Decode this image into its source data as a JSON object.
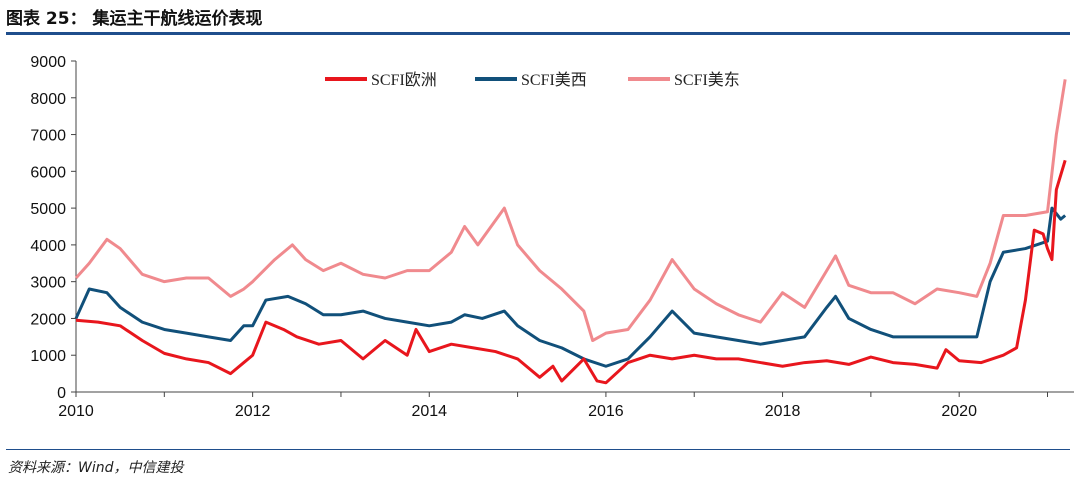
{
  "header": {
    "title": "图表 25：   集运主干航线运价表现"
  },
  "footer": {
    "source": "资料来源：Wind，中信建投"
  },
  "chart_data": {
    "type": "line",
    "title": "集运主干航线运价表现",
    "xlabel": "",
    "ylabel": "",
    "xlim": [
      2010,
      2021.3
    ],
    "ylim": [
      0,
      9000
    ],
    "xticks": [
      2010,
      2012,
      2014,
      2016,
      2018,
      2020
    ],
    "yticks": [
      0,
      1000,
      2000,
      3000,
      4000,
      5000,
      6000,
      7000,
      8000,
      9000
    ],
    "legend_position": "top-center",
    "series": [
      {
        "name": "SCFI欧洲",
        "color": "#e8161d",
        "points": [
          [
            2010,
            1950
          ],
          [
            2010.25,
            1900
          ],
          [
            2010.5,
            1800
          ],
          [
            2010.75,
            1400
          ],
          [
            2011,
            1050
          ],
          [
            2011.25,
            900
          ],
          [
            2011.5,
            800
          ],
          [
            2011.75,
            500
          ],
          [
            2011.9,
            800
          ],
          [
            2012,
            1000
          ],
          [
            2012.15,
            1900
          ],
          [
            2012.35,
            1700
          ],
          [
            2012.5,
            1500
          ],
          [
            2012.75,
            1300
          ],
          [
            2013,
            1400
          ],
          [
            2013.25,
            900
          ],
          [
            2013.5,
            1400
          ],
          [
            2013.75,
            1000
          ],
          [
            2013.85,
            1700
          ],
          [
            2014,
            1100
          ],
          [
            2014.25,
            1300
          ],
          [
            2014.5,
            1200
          ],
          [
            2014.75,
            1100
          ],
          [
            2015,
            900
          ],
          [
            2015.25,
            400
          ],
          [
            2015.4,
            700
          ],
          [
            2015.5,
            300
          ],
          [
            2015.75,
            900
          ],
          [
            2015.9,
            300
          ],
          [
            2016,
            250
          ],
          [
            2016.25,
            800
          ],
          [
            2016.5,
            1000
          ],
          [
            2016.75,
            900
          ],
          [
            2017,
            1000
          ],
          [
            2017.25,
            900
          ],
          [
            2017.5,
            900
          ],
          [
            2017.75,
            800
          ],
          [
            2018,
            700
          ],
          [
            2018.25,
            800
          ],
          [
            2018.5,
            850
          ],
          [
            2018.75,
            750
          ],
          [
            2019,
            950
          ],
          [
            2019.25,
            800
          ],
          [
            2019.5,
            750
          ],
          [
            2019.75,
            650
          ],
          [
            2019.85,
            1150
          ],
          [
            2020,
            850
          ],
          [
            2020.25,
            800
          ],
          [
            2020.5,
            1000
          ],
          [
            2020.65,
            1200
          ],
          [
            2020.75,
            2500
          ],
          [
            2020.85,
            4400
          ],
          [
            2020.95,
            4300
          ],
          [
            2021,
            3900
          ],
          [
            2021.05,
            3600
          ],
          [
            2021.1,
            5500
          ],
          [
            2021.2,
            6300
          ]
        ]
      },
      {
        "name": "SCFI美西",
        "color": "#11507a",
        "points": [
          [
            2010,
            2000
          ],
          [
            2010.15,
            2800
          ],
          [
            2010.35,
            2700
          ],
          [
            2010.5,
            2300
          ],
          [
            2010.75,
            1900
          ],
          [
            2011,
            1700
          ],
          [
            2011.25,
            1600
          ],
          [
            2011.5,
            1500
          ],
          [
            2011.75,
            1400
          ],
          [
            2011.9,
            1800
          ],
          [
            2012,
            1800
          ],
          [
            2012.15,
            2500
          ],
          [
            2012.4,
            2600
          ],
          [
            2012.6,
            2400
          ],
          [
            2012.8,
            2100
          ],
          [
            2013,
            2100
          ],
          [
            2013.25,
            2200
          ],
          [
            2013.5,
            2000
          ],
          [
            2013.75,
            1900
          ],
          [
            2014,
            1800
          ],
          [
            2014.25,
            1900
          ],
          [
            2014.4,
            2100
          ],
          [
            2014.6,
            2000
          ],
          [
            2014.85,
            2200
          ],
          [
            2015,
            1800
          ],
          [
            2015.25,
            1400
          ],
          [
            2015.5,
            1200
          ],
          [
            2015.75,
            900
          ],
          [
            2016,
            700
          ],
          [
            2016.25,
            900
          ],
          [
            2016.5,
            1500
          ],
          [
            2016.75,
            2200
          ],
          [
            2017,
            1600
          ],
          [
            2017.25,
            1500
          ],
          [
            2017.5,
            1400
          ],
          [
            2017.75,
            1300
          ],
          [
            2018,
            1400
          ],
          [
            2018.25,
            1500
          ],
          [
            2018.5,
            2300
          ],
          [
            2018.6,
            2600
          ],
          [
            2018.75,
            2000
          ],
          [
            2019,
            1700
          ],
          [
            2019.25,
            1500
          ],
          [
            2019.5,
            1500
          ],
          [
            2019.75,
            1500
          ],
          [
            2020,
            1500
          ],
          [
            2020.2,
            1500
          ],
          [
            2020.35,
            3000
          ],
          [
            2020.5,
            3800
          ],
          [
            2020.75,
            3900
          ],
          [
            2021,
            4100
          ],
          [
            2021.05,
            5000
          ],
          [
            2021.15,
            4700
          ],
          [
            2021.2,
            4800
          ]
        ]
      },
      {
        "name": "SCFI美东",
        "color": "#f08a8e",
        "points": [
          [
            2010,
            3100
          ],
          [
            2010.15,
            3500
          ],
          [
            2010.35,
            4150
          ],
          [
            2010.5,
            3900
          ],
          [
            2010.75,
            3200
          ],
          [
            2011,
            3000
          ],
          [
            2011.25,
            3100
          ],
          [
            2011.5,
            3100
          ],
          [
            2011.75,
            2600
          ],
          [
            2011.9,
            2800
          ],
          [
            2012,
            3000
          ],
          [
            2012.25,
            3600
          ],
          [
            2012.45,
            4000
          ],
          [
            2012.6,
            3600
          ],
          [
            2012.8,
            3300
          ],
          [
            2013,
            3500
          ],
          [
            2013.25,
            3200
          ],
          [
            2013.5,
            3100
          ],
          [
            2013.75,
            3300
          ],
          [
            2014,
            3300
          ],
          [
            2014.25,
            3800
          ],
          [
            2014.4,
            4500
          ],
          [
            2014.55,
            4000
          ],
          [
            2014.85,
            5000
          ],
          [
            2015,
            4000
          ],
          [
            2015.25,
            3300
          ],
          [
            2015.5,
            2800
          ],
          [
            2015.75,
            2200
          ],
          [
            2015.85,
            1400
          ],
          [
            2016,
            1600
          ],
          [
            2016.25,
            1700
          ],
          [
            2016.5,
            2500
          ],
          [
            2016.75,
            3600
          ],
          [
            2017,
            2800
          ],
          [
            2017.25,
            2400
          ],
          [
            2017.5,
            2100
          ],
          [
            2017.75,
            1900
          ],
          [
            2018,
            2700
          ],
          [
            2018.25,
            2300
          ],
          [
            2018.5,
            3300
          ],
          [
            2018.6,
            3700
          ],
          [
            2018.75,
            2900
          ],
          [
            2019,
            2700
          ],
          [
            2019.25,
            2700
          ],
          [
            2019.5,
            2400
          ],
          [
            2019.75,
            2800
          ],
          [
            2020,
            2700
          ],
          [
            2020.2,
            2600
          ],
          [
            2020.35,
            3500
          ],
          [
            2020.5,
            4800
          ],
          [
            2020.75,
            4800
          ],
          [
            2021,
            4900
          ],
          [
            2021.1,
            7000
          ],
          [
            2021.2,
            8500
          ]
        ]
      }
    ]
  }
}
